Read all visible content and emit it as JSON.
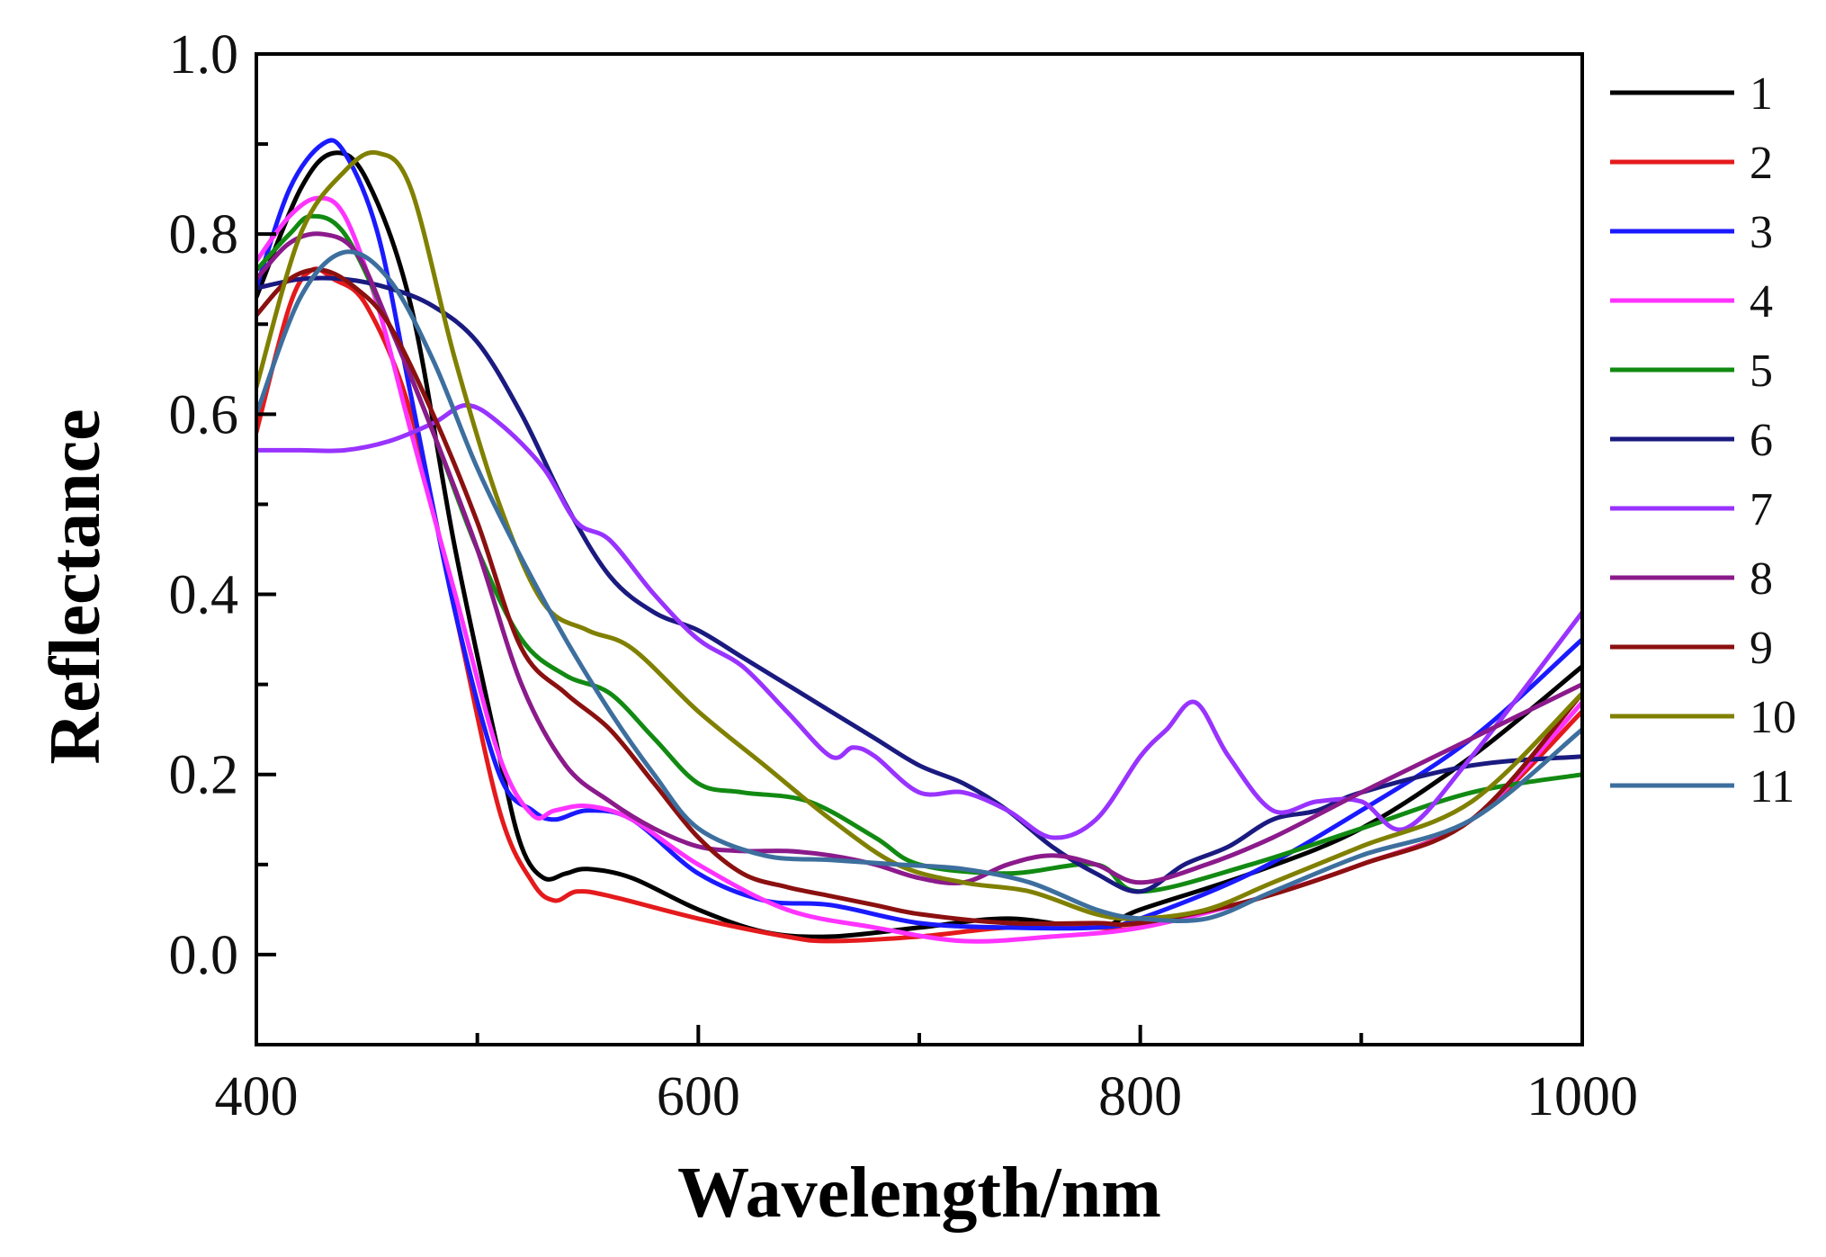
{
  "chart_data": {
    "type": "line",
    "title": "",
    "xlabel": "Wavelength/nm",
    "ylabel": "Reflectance",
    "xlim": [
      400,
      1000
    ],
    "ylim": [
      -0.1,
      1.0
    ],
    "xticks": [
      400,
      600,
      800,
      1000
    ],
    "xtick_labels": [
      "400",
      "600",
      "800",
      "1000"
    ],
    "yticks": [
      0.0,
      0.2,
      0.4,
      0.6,
      0.8,
      1.0
    ],
    "ytick_labels": [
      "0.0",
      "0.2",
      "0.4",
      "0.6",
      "0.8",
      "1.0"
    ],
    "grid": false,
    "legend_position": "right",
    "series": [
      {
        "name": "1",
        "color": "#000000",
        "x": [
          400,
          420,
          435,
          450,
          470,
          490,
          510,
          520,
          530,
          540,
          550,
          570,
          600,
          630,
          660,
          700,
          740,
          780,
          800,
          850,
          900,
          950,
          1000
        ],
        "y": [
          0.73,
          0.85,
          0.89,
          0.86,
          0.72,
          0.45,
          0.22,
          0.12,
          0.085,
          0.09,
          0.095,
          0.085,
          0.05,
          0.025,
          0.02,
          0.03,
          0.04,
          0.03,
          0.05,
          0.09,
          0.14,
          0.22,
          0.32
        ]
      },
      {
        "name": "2",
        "color": "#e41a1c",
        "x": [
          400,
          415,
          425,
          435,
          450,
          470,
          490,
          510,
          525,
          535,
          545,
          560,
          600,
          640,
          660,
          700,
          740,
          780,
          800,
          850,
          900,
          950,
          1000
        ],
        "y": [
          0.58,
          0.72,
          0.76,
          0.75,
          0.72,
          0.6,
          0.38,
          0.16,
          0.08,
          0.06,
          0.07,
          0.065,
          0.04,
          0.02,
          0.015,
          0.02,
          0.03,
          0.03,
          0.03,
          0.06,
          0.1,
          0.15,
          0.27
        ]
      },
      {
        "name": "3",
        "color": "#1a1aff",
        "x": [
          400,
          415,
          430,
          440,
          455,
          470,
          490,
          510,
          525,
          535,
          550,
          570,
          600,
          630,
          660,
          700,
          740,
          780,
          800,
          850,
          900,
          950,
          1000
        ],
        "y": [
          0.74,
          0.85,
          0.9,
          0.89,
          0.8,
          0.62,
          0.38,
          0.2,
          0.16,
          0.15,
          0.16,
          0.15,
          0.09,
          0.06,
          0.055,
          0.035,
          0.03,
          0.03,
          0.04,
          0.09,
          0.16,
          0.24,
          0.35
        ]
      },
      {
        "name": "4",
        "color": "#ff33ff",
        "x": [
          400,
          415,
          428,
          440,
          455,
          470,
          490,
          510,
          525,
          535,
          550,
          570,
          600,
          640,
          680,
          720,
          760,
          800,
          850,
          900,
          950,
          1000
        ],
        "y": [
          0.77,
          0.82,
          0.84,
          0.82,
          0.72,
          0.58,
          0.4,
          0.22,
          0.155,
          0.16,
          0.165,
          0.15,
          0.1,
          0.05,
          0.03,
          0.015,
          0.02,
          0.03,
          0.06,
          0.1,
          0.15,
          0.28
        ]
      },
      {
        "name": "5",
        "color": "#128a12",
        "x": [
          400,
          415,
          425,
          440,
          460,
          480,
          500,
          520,
          540,
          560,
          580,
          600,
          620,
          650,
          680,
          700,
          740,
          780,
          800,
          850,
          900,
          950,
          1000
        ],
        "y": [
          0.76,
          0.8,
          0.82,
          0.8,
          0.7,
          0.58,
          0.45,
          0.35,
          0.31,
          0.29,
          0.24,
          0.19,
          0.18,
          0.17,
          0.13,
          0.1,
          0.09,
          0.1,
          0.07,
          0.1,
          0.14,
          0.18,
          0.2
        ]
      },
      {
        "name": "6",
        "color": "#1a1a80",
        "x": [
          400,
          420,
          440,
          460,
          480,
          500,
          520,
          540,
          560,
          580,
          600,
          620,
          640,
          660,
          680,
          700,
          720,
          740,
          760,
          780,
          800,
          820,
          840,
          860,
          880,
          900,
          950,
          1000
        ],
        "y": [
          0.74,
          0.75,
          0.75,
          0.74,
          0.72,
          0.68,
          0.6,
          0.5,
          0.42,
          0.38,
          0.36,
          0.33,
          0.3,
          0.27,
          0.24,
          0.21,
          0.19,
          0.16,
          0.12,
          0.09,
          0.07,
          0.1,
          0.12,
          0.15,
          0.16,
          0.18,
          0.21,
          0.22
        ]
      },
      {
        "name": "7",
        "color": "#9933ff",
        "x": [
          400,
          420,
          440,
          460,
          480,
          495,
          510,
          530,
          545,
          560,
          580,
          600,
          620,
          640,
          660,
          670,
          680,
          700,
          720,
          740,
          760,
          780,
          800,
          812,
          825,
          840,
          860,
          880,
          900,
          920,
          950,
          1000
        ],
        "y": [
          0.56,
          0.56,
          0.56,
          0.57,
          0.59,
          0.61,
          0.59,
          0.54,
          0.48,
          0.46,
          0.4,
          0.35,
          0.32,
          0.27,
          0.22,
          0.23,
          0.22,
          0.18,
          0.18,
          0.16,
          0.13,
          0.15,
          0.22,
          0.25,
          0.28,
          0.22,
          0.16,
          0.17,
          0.17,
          0.14,
          0.22,
          0.38
        ]
      },
      {
        "name": "8",
        "color": "#8b1a8b",
        "x": [
          400,
          415,
          430,
          445,
          460,
          480,
          500,
          520,
          540,
          560,
          580,
          600,
          620,
          640,
          660,
          680,
          700,
          720,
          740,
          760,
          780,
          800,
          830,
          860,
          900,
          950,
          1000
        ],
        "y": [
          0.75,
          0.79,
          0.8,
          0.78,
          0.7,
          0.58,
          0.45,
          0.3,
          0.21,
          0.17,
          0.14,
          0.12,
          0.115,
          0.115,
          0.11,
          0.1,
          0.085,
          0.08,
          0.1,
          0.11,
          0.1,
          0.08,
          0.1,
          0.13,
          0.18,
          0.24,
          0.3
        ]
      },
      {
        "name": "9",
        "color": "#8b1010",
        "x": [
          400,
          415,
          430,
          445,
          460,
          480,
          500,
          520,
          540,
          560,
          580,
          600,
          620,
          640,
          660,
          680,
          700,
          740,
          780,
          800,
          850,
          900,
          950,
          1000
        ],
        "y": [
          0.71,
          0.75,
          0.76,
          0.74,
          0.7,
          0.6,
          0.48,
          0.34,
          0.29,
          0.25,
          0.19,
          0.13,
          0.09,
          0.075,
          0.065,
          0.055,
          0.045,
          0.035,
          0.035,
          0.035,
          0.06,
          0.1,
          0.15,
          0.29
        ]
      },
      {
        "name": "10",
        "color": "#808000",
        "x": [
          400,
          420,
          440,
          455,
          470,
          490,
          510,
          530,
          550,
          570,
          600,
          630,
          660,
          690,
          720,
          750,
          780,
          800,
          830,
          860,
          900,
          950,
          1000
        ],
        "y": [
          0.63,
          0.8,
          0.87,
          0.89,
          0.85,
          0.66,
          0.5,
          0.39,
          0.36,
          0.34,
          0.27,
          0.21,
          0.15,
          0.1,
          0.08,
          0.07,
          0.045,
          0.04,
          0.05,
          0.08,
          0.12,
          0.17,
          0.29
        ]
      },
      {
        "name": "11",
        "color": "#3d6f9e",
        "x": [
          400,
          420,
          440,
          460,
          480,
          500,
          520,
          540,
          560,
          580,
          600,
          630,
          660,
          690,
          720,
          750,
          780,
          800,
          830,
          860,
          900,
          950,
          1000
        ],
        "y": [
          0.6,
          0.73,
          0.78,
          0.75,
          0.66,
          0.54,
          0.44,
          0.35,
          0.27,
          0.2,
          0.14,
          0.11,
          0.105,
          0.1,
          0.095,
          0.08,
          0.05,
          0.04,
          0.04,
          0.07,
          0.11,
          0.15,
          0.25
        ]
      }
    ]
  }
}
